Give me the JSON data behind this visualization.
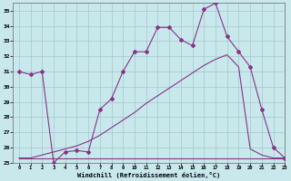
{
  "background_color": "#c8e8ec",
  "grid_color": "#a0c8cc",
  "line_color": "#883388",
  "xlim": [
    -0.5,
    23
  ],
  "ylim": [
    25,
    35.5
  ],
  "xticks": [
    0,
    1,
    2,
    3,
    4,
    5,
    6,
    7,
    8,
    9,
    10,
    11,
    12,
    13,
    14,
    15,
    16,
    17,
    18,
    19,
    20,
    21,
    22,
    23
  ],
  "yticks": [
    25,
    26,
    27,
    28,
    29,
    30,
    31,
    32,
    33,
    34,
    35
  ],
  "xlabel": "Windchill (Refroidissement éolien,°C)",
  "curve1_x": [
    0,
    1,
    2,
    3,
    4,
    5,
    6,
    7,
    8,
    9,
    10,
    11,
    12,
    13,
    14,
    15,
    16,
    17,
    18,
    19,
    20,
    21,
    22,
    23
  ],
  "curve1_y": [
    31,
    30.8,
    31,
    25,
    25.7,
    25.8,
    25.7,
    28.5,
    29.2,
    31,
    32.3,
    32.3,
    33.9,
    33.9,
    33.1,
    32.7,
    35.1,
    35.5,
    33.3,
    32.3,
    31.3,
    28.5,
    26.0,
    25.3
  ],
  "curve2_x": [
    0,
    1,
    2,
    3,
    4,
    5,
    6,
    7,
    8,
    9,
    10,
    11,
    12,
    13,
    14,
    15,
    16,
    17,
    18,
    19,
    20,
    21,
    22,
    23
  ],
  "curve2_y": [
    25.3,
    25.3,
    25.3,
    25.3,
    25.3,
    25.3,
    25.3,
    25.3,
    25.3,
    25.3,
    25.3,
    25.3,
    25.3,
    25.3,
    25.3,
    25.3,
    25.3,
    25.3,
    25.3,
    25.3,
    25.3,
    25.3,
    25.3,
    25.3
  ],
  "curve3_x": [
    0,
    1,
    2,
    3,
    4,
    5,
    6,
    7,
    8,
    9,
    10,
    11,
    12,
    13,
    14,
    15,
    16,
    17,
    18,
    19,
    20,
    21,
    22,
    23
  ],
  "curve3_y": [
    25.3,
    25.3,
    25.5,
    25.7,
    25.9,
    26.1,
    26.4,
    26.8,
    27.3,
    27.8,
    28.3,
    28.9,
    29.4,
    29.9,
    30.4,
    30.9,
    31.4,
    31.8,
    32.1,
    31.3,
    25.9,
    25.5,
    25.3,
    25.3
  ]
}
